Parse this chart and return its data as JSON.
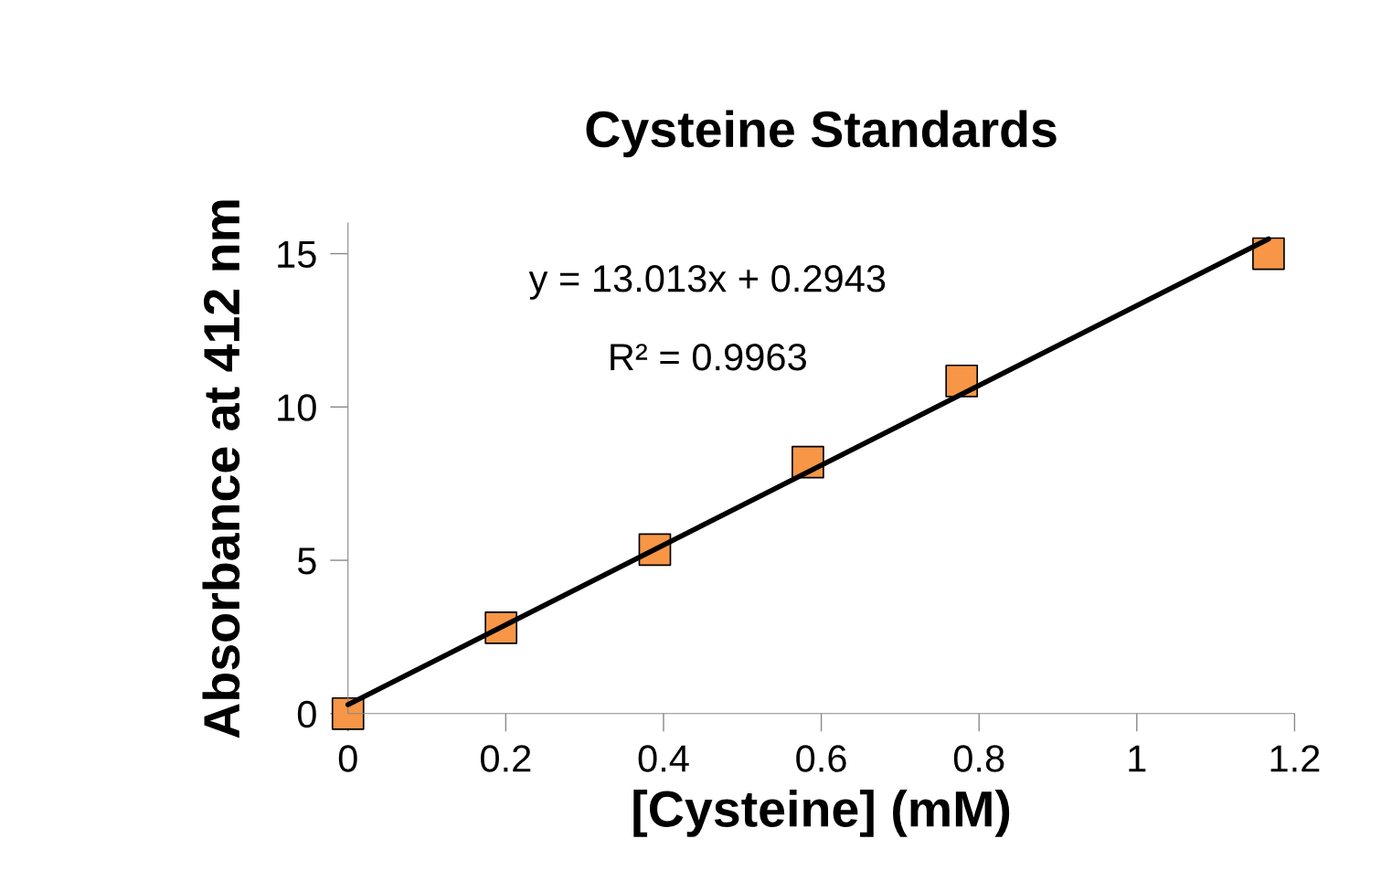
{
  "chart_data": {
    "type": "scatter",
    "title": "Cysteine Standards",
    "xlabel": "[Cysteine] (mM)",
    "ylabel": "Absorbance at 412 nm",
    "x": [
      0,
      0.194,
      0.389,
      0.583,
      0.778,
      1.167
    ],
    "series": [
      {
        "type": "scatter",
        "color": "#f79646",
        "marker": "square",
        "values": [
          0.0,
          2.8,
          5.35,
          8.2,
          10.85,
          15.0
        ]
      },
      {
        "type": "line",
        "color": "#000000",
        "marker": "none",
        "x": [
          0,
          1.167
        ],
        "values": [
          0.29,
          15.48
        ]
      }
    ],
    "annotations": [
      "y = 13.013x + 0.2943",
      "R² = 0.9963"
    ],
    "xlim": [
      0,
      1.2
    ],
    "ylim": [
      0,
      16
    ],
    "xticks": [
      0,
      0.2,
      0.4,
      0.6,
      0.8,
      1,
      1.2
    ],
    "yticks": [
      0,
      5,
      10,
      15
    ],
    "grid": false,
    "legend": false
  }
}
